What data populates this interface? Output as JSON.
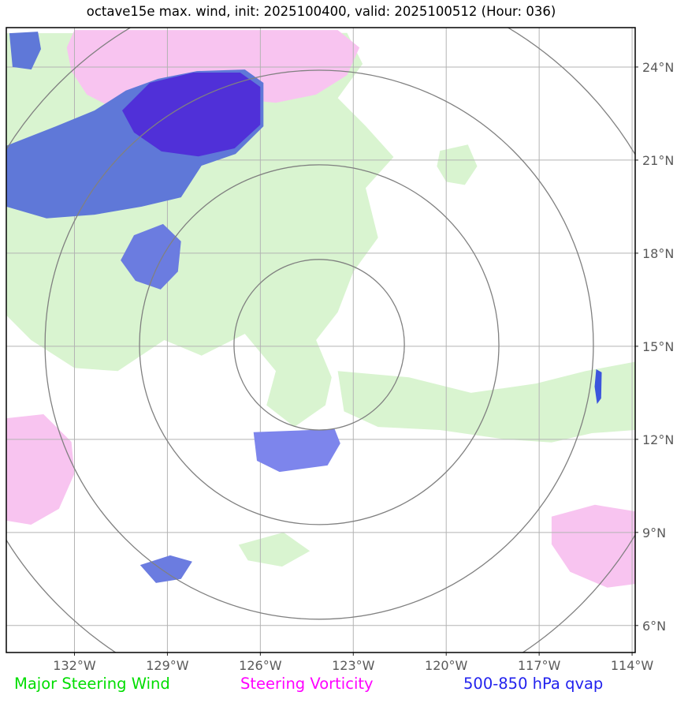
{
  "header": {
    "title": "octave15e max. wind, init: 2025100400, valid: 2025100512 (Hour: 036)"
  },
  "legend": {
    "items": [
      {
        "label": "Major Steering Wind",
        "color": "#00dd00"
      },
      {
        "label": "Steering Vorticity",
        "color": "#ff00ff"
      },
      {
        "label": "500-850 hPa qvap",
        "color": "#2222ee"
      }
    ]
  },
  "chart_data": {
    "type": "filled-contour-map",
    "lon_range": [
      -134.2,
      -113.9
    ],
    "lat_range": [
      5.13,
      25.27
    ],
    "x_ticks": [
      {
        "value": -132,
        "label": "132°W"
      },
      {
        "value": -129,
        "label": "129°W"
      },
      {
        "value": -126,
        "label": "126°W"
      },
      {
        "value": -123,
        "label": "123°W"
      },
      {
        "value": -120,
        "label": "120°W"
      },
      {
        "value": -117,
        "label": "117°W"
      },
      {
        "value": -114,
        "label": "114°W"
      }
    ],
    "y_ticks": [
      {
        "value": 24,
        "label": "24°N"
      },
      {
        "value": 21,
        "label": "21°N"
      },
      {
        "value": 18,
        "label": "18°N"
      },
      {
        "value": 15,
        "label": "15°N"
      },
      {
        "value": 12,
        "label": "12°N"
      },
      {
        "value": 9,
        "label": "9°N"
      },
      {
        "value": 6,
        "label": "6°N"
      }
    ],
    "grid_color": "#b3b3b3",
    "range_rings": {
      "center_lon": -124.1,
      "center_lat": 15.05,
      "radii_deg": [
        2.75,
        5.8,
        8.85,
        11.9
      ],
      "color": "#808080"
    },
    "regions": [
      {
        "name": "major-steering-wind-nw",
        "layer": "pale",
        "color": "#d9f4d0",
        "points": [
          [
            -134.2,
            25.09
          ],
          [
            -123.2,
            25.1
          ],
          [
            -122.7,
            24.1
          ],
          [
            -123.5,
            23.0
          ],
          [
            -122.6,
            22.1
          ],
          [
            -121.7,
            21.1
          ],
          [
            -122.6,
            20.1
          ],
          [
            -122.2,
            18.5
          ],
          [
            -123.0,
            17.4
          ],
          [
            -123.5,
            16.1
          ],
          [
            -124.2,
            15.2
          ],
          [
            -123.7,
            14.0
          ],
          [
            -123.9,
            13.1
          ],
          [
            -124.9,
            12.4
          ],
          [
            -125.8,
            13.1
          ],
          [
            -125.5,
            14.2
          ],
          [
            -126.5,
            15.4
          ],
          [
            -127.9,
            14.7
          ],
          [
            -129.1,
            15.2
          ],
          [
            -130.6,
            14.2
          ],
          [
            -132.0,
            14.3
          ],
          [
            -133.4,
            15.2
          ],
          [
            -134.2,
            16.0
          ]
        ]
      },
      {
        "name": "major-steering-wind-east-band",
        "layer": "pale",
        "color": "#d9f4d0",
        "points": [
          [
            -123.5,
            14.2
          ],
          [
            -121.2,
            14.0
          ],
          [
            -119.2,
            13.5
          ],
          [
            -117.1,
            13.8
          ],
          [
            -115.5,
            14.2
          ],
          [
            -113.9,
            14.5
          ],
          [
            -113.9,
            12.3
          ],
          [
            -115.3,
            12.2
          ],
          [
            -116.6,
            11.9
          ],
          [
            -118.1,
            12.0
          ],
          [
            -120.2,
            12.3
          ],
          [
            -122.2,
            12.4
          ],
          [
            -123.3,
            12.9
          ]
        ]
      },
      {
        "name": "major-steering-wind-small-ne",
        "layer": "pale",
        "color": "#d9f4d0",
        "points": [
          [
            -120.2,
            21.3
          ],
          [
            -119.3,
            21.5
          ],
          [
            -119.0,
            20.8
          ],
          [
            -119.4,
            20.2
          ],
          [
            -120.0,
            20.3
          ],
          [
            -120.3,
            20.8
          ]
        ]
      },
      {
        "name": "major-steering-wind-small-s",
        "layer": "pale",
        "color": "#d9f4d0",
        "points": [
          [
            -126.7,
            8.6
          ],
          [
            -125.25,
            9.0
          ],
          [
            -124.4,
            8.4
          ],
          [
            -125.3,
            7.9
          ],
          [
            -126.4,
            8.1
          ]
        ]
      },
      {
        "name": "steering-vorticity-north",
        "layer": "pale",
        "color": "#f8c4f0",
        "points": [
          [
            -132.0,
            25.19
          ],
          [
            -123.5,
            25.19
          ],
          [
            -122.8,
            24.63
          ],
          [
            -123.2,
            23.74
          ],
          [
            -124.2,
            23.11
          ],
          [
            -125.5,
            22.85
          ],
          [
            -126.8,
            22.98
          ],
          [
            -128.0,
            22.73
          ],
          [
            -129.3,
            22.35
          ],
          [
            -130.6,
            22.6
          ],
          [
            -131.6,
            23.11
          ],
          [
            -132.1,
            23.87
          ],
          [
            -132.25,
            24.63
          ]
        ]
      },
      {
        "name": "steering-vorticity-west",
        "layer": "pale",
        "color": "#f8c4f0",
        "points": [
          [
            -134.2,
            12.68
          ],
          [
            -133.0,
            12.81
          ],
          [
            -132.1,
            11.92
          ],
          [
            -132.0,
            10.9
          ],
          [
            -132.5,
            9.76
          ],
          [
            -133.4,
            9.25
          ],
          [
            -134.2,
            9.38
          ]
        ]
      },
      {
        "name": "steering-vorticity-se",
        "layer": "pale",
        "color": "#f8c4f0",
        "points": [
          [
            -116.6,
            9.51
          ],
          [
            -115.2,
            9.89
          ],
          [
            -113.9,
            9.68
          ],
          [
            -113.9,
            7.34
          ],
          [
            -114.8,
            7.22
          ],
          [
            -116.0,
            7.73
          ],
          [
            -116.6,
            8.62
          ]
        ]
      },
      {
        "name": "qvap-nw-outer",
        "layer": "top",
        "color": "#5f78d8",
        "points": [
          [
            -134.2,
            21.46
          ],
          [
            -132.6,
            22.09
          ],
          [
            -131.35,
            22.6
          ],
          [
            -130.34,
            23.24
          ],
          [
            -129.3,
            23.62
          ],
          [
            -128.05,
            23.87
          ],
          [
            -126.5,
            23.92
          ],
          [
            -125.9,
            23.49
          ],
          [
            -125.9,
            22.09
          ],
          [
            -126.8,
            21.2
          ],
          [
            -127.9,
            20.82
          ],
          [
            -128.56,
            19.8
          ],
          [
            -129.83,
            19.5
          ],
          [
            -131.35,
            19.24
          ],
          [
            -132.9,
            19.12
          ],
          [
            -134.2,
            19.5
          ]
        ]
      },
      {
        "name": "qvap-nw-core",
        "layer": "top",
        "color": "#5030d8",
        "points": [
          [
            -130.46,
            22.6
          ],
          [
            -129.57,
            23.49
          ],
          [
            -128.17,
            23.82
          ],
          [
            -126.65,
            23.82
          ],
          [
            -126.0,
            23.36
          ],
          [
            -126.0,
            22.14
          ],
          [
            -126.83,
            21.38
          ],
          [
            -128.0,
            21.12
          ],
          [
            -129.19,
            21.28
          ],
          [
            -130.08,
            21.89
          ]
        ]
      },
      {
        "name": "qvap-corner-nw",
        "layer": "top",
        "color": "#5f78d8",
        "points": [
          [
            -134.1,
            25.09
          ],
          [
            -133.18,
            25.14
          ],
          [
            -133.08,
            24.58
          ],
          [
            -133.39,
            23.92
          ],
          [
            -134.0,
            24.0
          ]
        ]
      },
      {
        "name": "qvap-west-small",
        "layer": "top",
        "color": "#6b7ce0",
        "points": [
          [
            -130.08,
            18.58
          ],
          [
            -129.14,
            18.94
          ],
          [
            -128.56,
            18.38
          ],
          [
            -128.66,
            17.41
          ],
          [
            -129.22,
            16.83
          ],
          [
            -130.03,
            17.11
          ],
          [
            -130.51,
            17.77
          ]
        ]
      },
      {
        "name": "qvap-center-south",
        "layer": "top",
        "color": "#7d85ec",
        "points": [
          [
            -126.22,
            12.23
          ],
          [
            -123.6,
            12.33
          ],
          [
            -123.42,
            11.87
          ],
          [
            -123.83,
            11.16
          ],
          [
            -125.38,
            10.95
          ],
          [
            -126.11,
            11.31
          ]
        ]
      },
      {
        "name": "qvap-south-small",
        "layer": "top",
        "color": "#6b7ce0",
        "points": [
          [
            -129.88,
            7.95
          ],
          [
            -128.91,
            8.26
          ],
          [
            -128.2,
            8.06
          ],
          [
            -128.56,
            7.5
          ],
          [
            -129.37,
            7.37
          ]
        ]
      },
      {
        "name": "qvap-east-sliver",
        "layer": "top",
        "color": "#3c55dd",
        "points": [
          [
            -115.16,
            14.26
          ],
          [
            -114.98,
            14.16
          ],
          [
            -115.0,
            13.32
          ],
          [
            -115.13,
            13.14
          ],
          [
            -115.21,
            13.7
          ]
        ]
      }
    ]
  }
}
